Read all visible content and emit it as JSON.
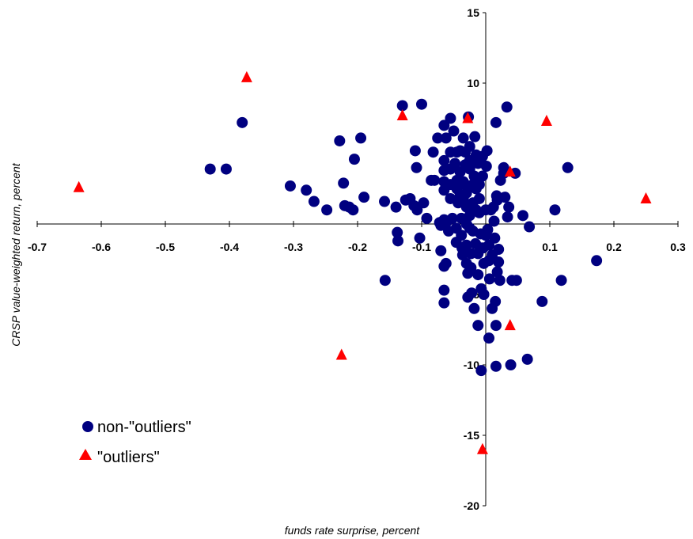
{
  "chart_data": {
    "type": "scatter",
    "title": "",
    "xlabel": "funds rate surprise, percent",
    "ylabel": "CRSP value-weighted return, percent",
    "xlim": [
      -0.7,
      0.3
    ],
    "ylim": [
      -20,
      15
    ],
    "xticks": [
      -0.7,
      -0.6,
      -0.5,
      -0.4,
      -0.3,
      -0.2,
      -0.1,
      0.0,
      0.1,
      0.2,
      0.3
    ],
    "xtick_labels": [
      "-0.7",
      "-0.6",
      "-0.5",
      "-0.4",
      "-0.3",
      "-0.2",
      "-0.1",
      "0.0",
      "0.1",
      "0.2",
      "0.3"
    ],
    "yticks": [
      -20,
      -15,
      -10,
      -5,
      0,
      5,
      10,
      15
    ],
    "ytick_labels": [
      "-20",
      "-15",
      "-10",
      "-5",
      "0",
      "5",
      "10",
      "15"
    ],
    "grid": false,
    "legend": "bottom-left",
    "series": [
      {
        "name": "non-\"outliers\"",
        "marker": "circle",
        "color": "#000080",
        "points": [
          [
            -0.43,
            3.9
          ],
          [
            -0.405,
            3.9
          ],
          [
            -0.38,
            7.2
          ],
          [
            -0.305,
            2.7
          ],
          [
            -0.28,
            2.4
          ],
          [
            -0.268,
            1.6
          ],
          [
            -0.248,
            1.0
          ],
          [
            -0.228,
            5.9
          ],
          [
            -0.222,
            2.9
          ],
          [
            -0.22,
            1.3
          ],
          [
            -0.213,
            1.2
          ],
          [
            -0.207,
            1.0
          ],
          [
            -0.205,
            4.6
          ],
          [
            -0.195,
            6.1
          ],
          [
            -0.19,
            1.9
          ],
          [
            -0.158,
            1.6
          ],
          [
            -0.157,
            -4.0
          ],
          [
            -0.14,
            1.2
          ],
          [
            -0.138,
            -0.6
          ],
          [
            -0.137,
            -1.2
          ],
          [
            -0.13,
            8.4
          ],
          [
            -0.125,
            1.7
          ],
          [
            -0.118,
            1.8
          ],
          [
            -0.112,
            1.3
          ],
          [
            -0.11,
            5.2
          ],
          [
            -0.108,
            4.0
          ],
          [
            -0.107,
            1.0
          ],
          [
            -0.103,
            -1.0
          ],
          [
            -0.1,
            8.5
          ],
          [
            -0.097,
            1.5
          ],
          [
            -0.092,
            0.4
          ],
          [
            -0.085,
            3.1
          ],
          [
            -0.082,
            5.1
          ],
          [
            -0.08,
            3.1
          ],
          [
            -0.075,
            6.1
          ],
          [
            -0.072,
            0.1
          ],
          [
            -0.07,
            -0.1
          ],
          [
            -0.07,
            -1.9
          ],
          [
            -0.065,
            7.0
          ],
          [
            -0.065,
            4.5
          ],
          [
            -0.065,
            3.8
          ],
          [
            -0.065,
            3.0
          ],
          [
            -0.065,
            2.4
          ],
          [
            -0.065,
            0.3
          ],
          [
            -0.065,
            -3.0
          ],
          [
            -0.065,
            -4.7
          ],
          [
            -0.065,
            -5.6
          ],
          [
            -0.062,
            -2.8
          ],
          [
            -0.062,
            6.1
          ],
          [
            -0.06,
            0.2
          ],
          [
            -0.058,
            -0.5
          ],
          [
            -0.055,
            7.5
          ],
          [
            -0.055,
            5.1
          ],
          [
            -0.055,
            3.9
          ],
          [
            -0.055,
            2.8
          ],
          [
            -0.055,
            1.8
          ],
          [
            -0.052,
            0.4
          ],
          [
            -0.05,
            6.6
          ],
          [
            -0.048,
            4.3
          ],
          [
            -0.046,
            -0.3
          ],
          [
            -0.046,
            -1.3
          ],
          [
            -0.045,
            5.1
          ],
          [
            -0.045,
            3.1
          ],
          [
            -0.045,
            2.5
          ],
          [
            -0.043,
            1.5
          ],
          [
            -0.04,
            5.2
          ],
          [
            -0.04,
            3.7
          ],
          [
            -0.04,
            2.0
          ],
          [
            -0.038,
            0.4
          ],
          [
            -0.038,
            -0.8
          ],
          [
            -0.037,
            -1.7
          ],
          [
            -0.036,
            -2.2
          ],
          [
            -0.035,
            6.1
          ],
          [
            -0.035,
            3.0
          ],
          [
            -0.035,
            1.8
          ],
          [
            -0.032,
            5.1
          ],
          [
            -0.032,
            4.2
          ],
          [
            -0.032,
            2.8
          ],
          [
            -0.03,
            2.2
          ],
          [
            -0.03,
            1.2
          ],
          [
            -0.03,
            0.0
          ],
          [
            -0.03,
            -1.5
          ],
          [
            -0.03,
            -2.8
          ],
          [
            -0.028,
            -3.5
          ],
          [
            -0.028,
            -5.2
          ],
          [
            -0.027,
            7.6
          ],
          [
            -0.025,
            5.5
          ],
          [
            -0.025,
            4.5
          ],
          [
            -0.025,
            3.9
          ],
          [
            -0.025,
            2.6
          ],
          [
            -0.025,
            0.6
          ],
          [
            -0.025,
            -0.3
          ],
          [
            -0.023,
            -2.1
          ],
          [
            -0.023,
            -3.1
          ],
          [
            -0.022,
            -4.9
          ],
          [
            -0.02,
            2.8
          ],
          [
            -0.02,
            1.5
          ],
          [
            -0.02,
            -0.5
          ],
          [
            -0.018,
            3.4
          ],
          [
            -0.018,
            -6.0
          ],
          [
            -0.017,
            6.2
          ],
          [
            -0.016,
            -1.4
          ],
          [
            -0.015,
            4.9
          ],
          [
            -0.015,
            2.5
          ],
          [
            -0.015,
            1.0
          ],
          [
            -0.012,
            4.3
          ],
          [
            -0.012,
            -2.1
          ],
          [
            -0.012,
            -3.6
          ],
          [
            -0.012,
            -7.2
          ],
          [
            -0.01,
            2.8
          ],
          [
            -0.01,
            1.8
          ],
          [
            -0.01,
            0.8
          ],
          [
            -0.008,
            -0.7
          ],
          [
            -0.008,
            -1.7
          ],
          [
            -0.007,
            -4.6
          ],
          [
            -0.007,
            -10.4
          ],
          [
            -0.005,
            4.8
          ],
          [
            -0.005,
            3.4
          ],
          [
            -0.004,
            -1.7
          ],
          [
            -0.003,
            -2.8
          ],
          [
            -0.003,
            -5.0
          ],
          [
            0.0,
            -0.8
          ],
          [
            0.0,
            1.0
          ],
          [
            0.001,
            4.1
          ],
          [
            0.002,
            5.2
          ],
          [
            0.003,
            -0.4
          ],
          [
            0.005,
            -8.1
          ],
          [
            0.005,
            -1.5
          ],
          [
            0.005,
            -2.6
          ],
          [
            0.006,
            -3.9
          ],
          [
            0.008,
            1.0
          ],
          [
            0.01,
            -2.2
          ],
          [
            0.01,
            -6.0
          ],
          [
            0.012,
            1.2
          ],
          [
            0.013,
            0.2
          ],
          [
            0.014,
            -1.0
          ],
          [
            0.015,
            -5.5
          ],
          [
            0.016,
            7.2
          ],
          [
            0.016,
            -10.1
          ],
          [
            0.016,
            -7.2
          ],
          [
            0.017,
            2.0
          ],
          [
            0.018,
            -3.4
          ],
          [
            0.018,
            1.7
          ],
          [
            0.02,
            -1.8
          ],
          [
            0.02,
            -2.7
          ],
          [
            0.022,
            -4.0
          ],
          [
            0.023,
            3.1
          ],
          [
            0.028,
            3.6
          ],
          [
            0.028,
            4.0
          ],
          [
            0.03,
            1.9
          ],
          [
            0.033,
            8.3
          ],
          [
            0.034,
            0.5
          ],
          [
            0.036,
            1.2
          ],
          [
            0.039,
            -10.0
          ],
          [
            0.041,
            -4.0
          ],
          [
            0.046,
            3.6
          ],
          [
            0.048,
            -4.0
          ],
          [
            0.058,
            0.6
          ],
          [
            0.065,
            -9.6
          ],
          [
            0.068,
            -0.2
          ],
          [
            0.088,
            -5.5
          ],
          [
            0.108,
            1.0
          ],
          [
            0.118,
            -4.0
          ],
          [
            0.128,
            4.0
          ],
          [
            0.173,
            -2.6
          ]
        ]
      },
      {
        "name": "\"outliers\"",
        "marker": "triangle",
        "color": "#ff0000",
        "points": [
          [
            -0.635,
            2.6
          ],
          [
            -0.373,
            10.4
          ],
          [
            -0.225,
            -9.3
          ],
          [
            -0.13,
            7.7
          ],
          [
            -0.028,
            7.5
          ],
          [
            -0.005,
            -16.0
          ],
          [
            0.038,
            -7.2
          ],
          [
            0.038,
            3.7
          ],
          [
            0.095,
            7.3
          ],
          [
            0.25,
            1.8
          ]
        ]
      }
    ]
  }
}
